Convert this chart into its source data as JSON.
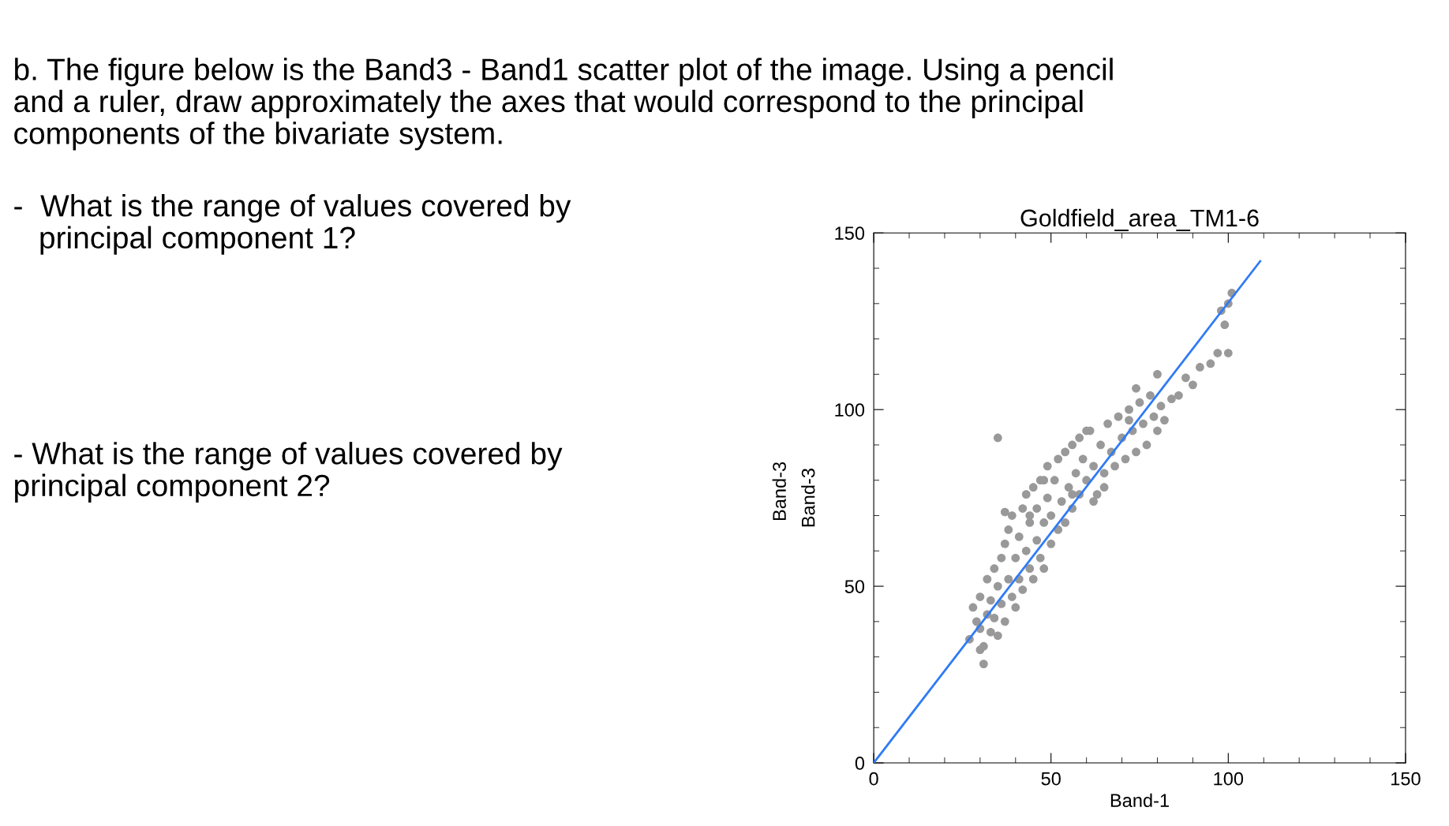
{
  "chart_data": {
    "type": "scatter",
    "title": "Goldfield_area_TM1-6",
    "xlabel": "Band-1",
    "ylabel": "Band-3",
    "annotations": [
      "b. The figure below is the Band3 - Band1 scatter plot of the image. Using a pencil\nand a ruler, draw approximately the axes that would correspond to the principal\ncomponents of the bivariate system.",
      "-  What is the range of values covered by\n   principal component 1?",
      "- What is the range of values covered by\nprincipal component 2?",
      "Band-3"
    ],
    "xlim": [
      0,
      150
    ],
    "ylim": [
      0,
      150
    ],
    "xticks": [
      0,
      50,
      100,
      150
    ],
    "yticks": [
      0,
      50,
      100,
      150
    ],
    "grid": false,
    "legend": false,
    "marker": "circle",
    "series": [
      {
        "color": "#999999",
        "x": [
          27,
          28,
          29,
          30,
          30,
          31,
          31,
          32,
          32,
          33,
          33,
          34,
          34,
          35,
          35,
          36,
          36,
          37,
          37,
          38,
          38,
          39,
          39,
          40,
          40,
          41,
          41,
          42,
          42,
          43,
          43,
          44,
          44,
          45,
          45,
          46,
          46,
          47,
          47,
          48,
          48,
          49,
          49,
          50,
          50,
          51,
          52,
          52,
          53,
          54,
          54,
          55,
          56,
          56,
          57,
          58,
          58,
          59,
          60,
          61,
          62,
          63,
          64,
          65,
          66,
          67,
          68,
          69,
          70,
          71,
          72,
          73,
          74,
          75,
          76,
          77,
          78,
          79,
          80,
          81,
          82,
          84,
          86,
          88,
          90,
          92,
          95,
          97,
          100,
          99,
          100,
          101,
          98,
          74,
          72,
          80,
          60,
          35,
          30,
          37,
          56,
          62,
          65,
          48,
          44
        ],
        "values": [
          35,
          44,
          40,
          38,
          47,
          33,
          28,
          42,
          52,
          37,
          46,
          55,
          41,
          50,
          36,
          58,
          45,
          62,
          40,
          52,
          66,
          47,
          70,
          58,
          44,
          64,
          52,
          72,
          49,
          60,
          76,
          55,
          68,
          78,
          52,
          63,
          72,
          58,
          80,
          68,
          55,
          75,
          84,
          62,
          70,
          80,
          66,
          86,
          74,
          68,
          88,
          78,
          72,
          90,
          82,
          76,
          92,
          86,
          80,
          94,
          84,
          76,
          90,
          82,
          96,
          88,
          84,
          98,
          92,
          86,
          100,
          94,
          88,
          102,
          96,
          90,
          104,
          98,
          94,
          101,
          97,
          103,
          104,
          109,
          107,
          112,
          113,
          116,
          116,
          124,
          130,
          133,
          128,
          106,
          97,
          110,
          94,
          92,
          32,
          71,
          76,
          74,
          78,
          80,
          70
        ]
      },
      {
        "type": "line",
        "color": "#2f7bf5",
        "x": [
          0,
          109
        ],
        "values": [
          0,
          142
        ],
        "marker": "none",
        "line_style": "solid"
      }
    ]
  }
}
